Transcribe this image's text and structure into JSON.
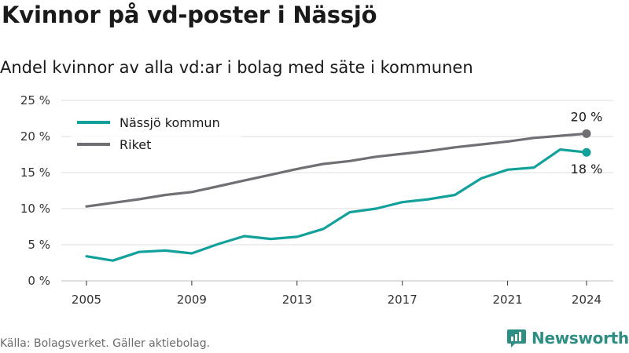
{
  "header": {
    "title": "Kvinnor på vd-poster i Nässjö",
    "subtitle": "Andel kvinnor av alla vd:ar i bolag med säte i kommunen"
  },
  "footer": {
    "source": "Källa: Bolagsverket. Gäller aktiebolag.",
    "logo_text": "Newsworthy"
  },
  "colors": {
    "nassjo": "#12a19a",
    "riket": "#6f6f74",
    "grid": "#dcdcdc"
  },
  "chart_data": {
    "type": "line",
    "title": "Kvinnor på vd-poster i Nässjö",
    "subtitle": "Andel kvinnor av alla vd:ar i bolag med säte i kommunen",
    "xlabel": "",
    "ylabel": "",
    "xlim": [
      2005,
      2024
    ],
    "ylim": [
      0,
      25
    ],
    "x_ticks": [
      2005,
      2009,
      2013,
      2017,
      2021,
      2024
    ],
    "x_tick_labels": [
      "2005",
      "2009",
      "2013",
      "2017",
      "2021",
      "2024"
    ],
    "y_ticks": [
      0,
      5,
      10,
      15,
      20,
      25
    ],
    "y_tick_labels": [
      "0 %",
      "5 %",
      "10 %",
      "15 %",
      "20 %",
      "25 %"
    ],
    "grid": true,
    "legend_position": "top-left",
    "x": [
      2005,
      2006,
      2007,
      2008,
      2009,
      2010,
      2011,
      2012,
      2013,
      2014,
      2015,
      2016,
      2017,
      2018,
      2019,
      2020,
      2021,
      2022,
      2023,
      2024
    ],
    "series": [
      {
        "name": "Nässjö kommun",
        "color": "#12a19a",
        "values": [
          3.4,
          2.8,
          4.0,
          4.2,
          3.8,
          5.1,
          6.2,
          5.8,
          6.1,
          7.2,
          9.5,
          10.0,
          10.9,
          11.3,
          11.9,
          14.2,
          15.4,
          15.7,
          18.2,
          17.8
        ],
        "end_label": "18 %"
      },
      {
        "name": "Riket",
        "color": "#6f6f74",
        "values": [
          10.3,
          10.8,
          11.3,
          11.9,
          12.3,
          13.1,
          13.9,
          14.7,
          15.5,
          16.2,
          16.6,
          17.2,
          17.6,
          18.0,
          18.5,
          18.9,
          19.3,
          19.8,
          20.1,
          20.4
        ],
        "end_label": "20 %"
      }
    ]
  }
}
